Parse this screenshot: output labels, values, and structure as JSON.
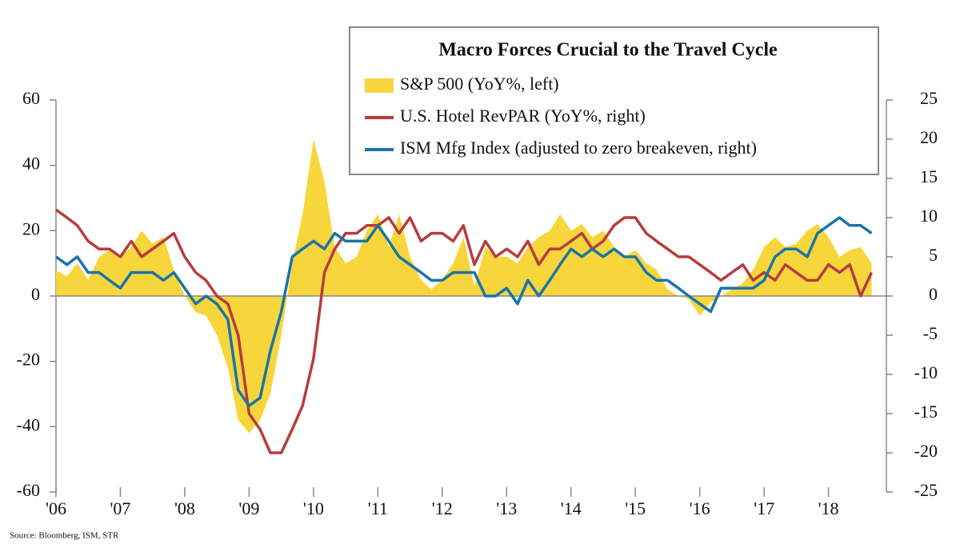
{
  "chart_data": {
    "type": "combo",
    "title": "Macro Forces Crucial to the Travel Cycle",
    "source": "Source: Bloomberg, ISM, STR",
    "x": [
      2006,
      2006.17,
      2006.33,
      2006.5,
      2006.67,
      2006.83,
      2007,
      2007.17,
      2007.33,
      2007.5,
      2007.67,
      2007.83,
      2008,
      2008.17,
      2008.33,
      2008.5,
      2008.67,
      2008.83,
      2009,
      2009.17,
      2009.33,
      2009.5,
      2009.67,
      2009.83,
      2010,
      2010.17,
      2010.33,
      2010.5,
      2010.67,
      2010.83,
      2011,
      2011.17,
      2011.33,
      2011.5,
      2011.67,
      2011.83,
      2012,
      2012.17,
      2012.33,
      2012.5,
      2012.67,
      2012.83,
      2013,
      2013.17,
      2013.33,
      2013.5,
      2013.67,
      2013.83,
      2014,
      2014.17,
      2014.33,
      2014.5,
      2014.67,
      2014.83,
      2015,
      2015.17,
      2015.33,
      2015.5,
      2015.67,
      2015.83,
      2016,
      2016.17,
      2016.33,
      2016.5,
      2016.67,
      2016.83,
      2017,
      2017.17,
      2017.33,
      2017.5,
      2017.67,
      2017.83,
      2018,
      2018.17,
      2018.33,
      2018.5,
      2018.67
    ],
    "series": [
      {
        "name": "S&P 500 (YoY%, left)",
        "type": "area",
        "color": "#f7d63b",
        "axis": "y",
        "values": [
          8,
          6,
          10,
          5,
          12,
          14,
          12,
          15,
          20,
          16,
          18,
          8,
          0,
          -5,
          -6,
          -12,
          -22,
          -38,
          -42,
          -38,
          -30,
          -12,
          10,
          25,
          48,
          35,
          15,
          10,
          12,
          20,
          25,
          15,
          25,
          12,
          5,
          2,
          5,
          10,
          18,
          3,
          15,
          12,
          12,
          10,
          15,
          18,
          20,
          25,
          20,
          22,
          18,
          20,
          15,
          12,
          14,
          10,
          8,
          2,
          0,
          -1,
          -6,
          -2,
          0,
          2,
          4,
          8,
          15,
          18,
          15,
          16,
          20,
          22,
          18,
          12,
          14,
          15,
          10
        ]
      },
      {
        "name": "U.S. Hotel RevPAR (YoY%, right)",
        "type": "line",
        "color": "#b83c3c",
        "axis": "y2",
        "values": [
          11,
          10,
          9,
          7,
          6,
          6,
          5,
          7,
          5,
          6,
          7,
          8,
          5,
          3,
          2,
          0,
          -1,
          -5,
          -15,
          -17,
          -20,
          -20,
          -17,
          -14,
          -8,
          3,
          6,
          8,
          8,
          9,
          9,
          10,
          8,
          10,
          7,
          8,
          8,
          7,
          9,
          4,
          7,
          5,
          6,
          5,
          7,
          4,
          6,
          6,
          7,
          8,
          6,
          7,
          9,
          10,
          10,
          8,
          7,
          6,
          5,
          5,
          4,
          3,
          2,
          3,
          4,
          2,
          3,
          2,
          4,
          3,
          2,
          2,
          4,
          3,
          4,
          0,
          3
        ]
      },
      {
        "name": "ISM Mfg Index (adjusted to zero breakeven, right)",
        "type": "line",
        "color": "#1a74a8",
        "axis": "y2",
        "values": [
          5,
          4,
          5,
          3,
          3,
          2,
          1,
          3,
          3,
          3,
          2,
          3,
          1,
          -1,
          0,
          -1,
          -3,
          -12,
          -14,
          -13,
          -7,
          -2,
          5,
          6,
          7,
          6,
          8,
          7,
          7,
          7,
          9,
          7,
          5,
          4,
          3,
          2,
          2,
          3,
          3,
          3,
          0,
          0,
          1,
          -1,
          2,
          0,
          2,
          4,
          6,
          5,
          6,
          5,
          6,
          5,
          5,
          3,
          2,
          2,
          1,
          0,
          -1,
          -2,
          1,
          1,
          1,
          1,
          2,
          5,
          6,
          6,
          5,
          8,
          9,
          10,
          9,
          9,
          8
        ]
      }
    ],
    "xlim": [
      2006,
      2018.9
    ],
    "xticks": [
      {
        "value": 2006,
        "label": "'06"
      },
      {
        "value": 2007,
        "label": "'07"
      },
      {
        "value": 2008,
        "label": "'08"
      },
      {
        "value": 2009,
        "label": "'09"
      },
      {
        "value": 2010,
        "label": "'10"
      },
      {
        "value": 2011,
        "label": "'11"
      },
      {
        "value": 2012,
        "label": "'12"
      },
      {
        "value": 2013,
        "label": "'13"
      },
      {
        "value": 2014,
        "label": "'14"
      },
      {
        "value": 2015,
        "label": "'15"
      },
      {
        "value": 2016,
        "label": "'16"
      },
      {
        "value": 2017,
        "label": "'17"
      },
      {
        "value": 2018,
        "label": "'18"
      }
    ],
    "ylim": [
      -60,
      60
    ],
    "yticks": [
      -60,
      -40,
      -20,
      0,
      20,
      40,
      60
    ],
    "y2lim": [
      -25,
      25
    ],
    "y2ticks": [
      -25,
      -20,
      -15,
      -10,
      -5,
      0,
      5,
      10,
      15,
      20,
      25
    ],
    "legend": "top-right"
  }
}
